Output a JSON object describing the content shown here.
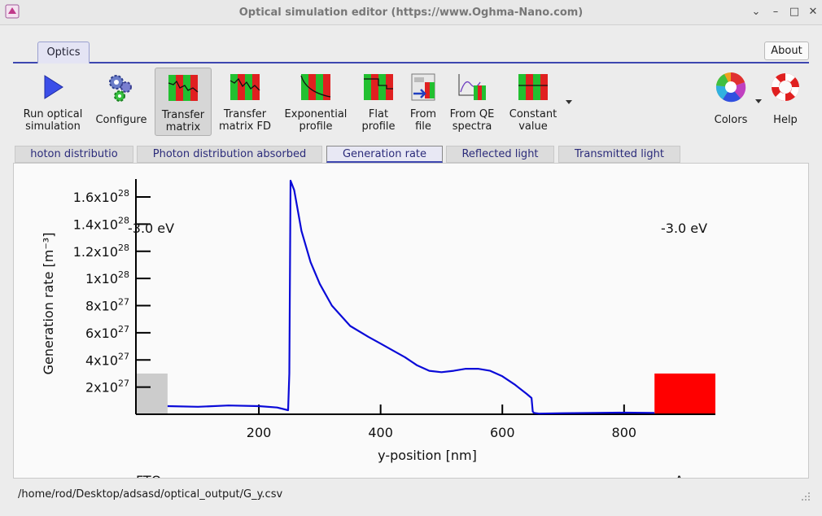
{
  "window": {
    "title": "Optical simulation editor (https://www.Oghma-Nano.com)",
    "controls": [
      "minimize",
      "maximize",
      "close"
    ]
  },
  "ribbon": {
    "tab_label": "Optics",
    "about_label": "About"
  },
  "toolbar": {
    "run": "Run optical\nsimulation",
    "configure": "Configure",
    "transfer_matrix": "Transfer\nmatrix",
    "transfer_matrix_fd": "Transfer\nmatrix FD",
    "exponential_profile": "Exponential\nprofile",
    "flat_profile": "Flat\nprofile",
    "from_file": "From\nfile",
    "from_qe_spectra": "From QE\nspectra",
    "constant_value": "Constant\nvalue",
    "colors": "Colors",
    "help": "Help"
  },
  "subtabs": [
    {
      "label": "hoton distributio"
    },
    {
      "label": "Photon distribution absorbed"
    },
    {
      "label": "Generation rate",
      "active": true
    },
    {
      "label": "Reflected light"
    },
    {
      "label": "Transmitted light"
    }
  ],
  "chart_data": {
    "type": "line",
    "xlabel": "y-position [nm]",
    "ylabel": "Generation rate [m⁻³]",
    "xlim": [
      -2,
      950
    ],
    "ylim": [
      0,
      1.75e+28
    ],
    "x_ticks": [
      200,
      400,
      600,
      800
    ],
    "y_ticks": [
      {
        "mant": "2x10",
        "exp": "27",
        "value": 2e+27
      },
      {
        "mant": "4x10",
        "exp": "27",
        "value": 4e+27
      },
      {
        "mant": "6x10",
        "exp": "27",
        "value": 6e+27
      },
      {
        "mant": "8x10",
        "exp": "27",
        "value": 8e+27
      },
      {
        "mant": "1x10",
        "exp": "28",
        "value": 1e+28
      },
      {
        "mant": "1.2x10",
        "exp": "28",
        "value": 1.2e+28
      },
      {
        "mant": "1.4x10",
        "exp": "28",
        "value": 1.4e+28
      },
      {
        "mant": "1.6x10",
        "exp": "28",
        "value": 1.6e+28
      }
    ],
    "annotations": [
      {
        "text": "-3.0 eV",
        "side": "left"
      },
      {
        "text": "-3.0 eV",
        "side": "right"
      },
      {
        "text": "FTO",
        "side": "left-bottom"
      },
      {
        "text": "A",
        "side": "right-bottom"
      }
    ],
    "layers": [
      {
        "x0": -2,
        "x1": 50,
        "height": 3e+27,
        "color": "#cccccc"
      },
      {
        "x0": 850,
        "x1": 950,
        "height": 3e+27,
        "color": "#ff0000"
      }
    ],
    "series": [
      {
        "color": "#0a0ad8",
        "x": [
          50,
          100,
          150,
          200,
          230,
          248,
          250,
          252,
          258,
          270,
          285,
          300,
          320,
          350,
          380,
          400,
          420,
          440,
          460,
          480,
          500,
          520,
          540,
          560,
          580,
          600,
          620,
          640,
          648,
          650,
          652,
          660,
          700,
          750,
          800,
          850
        ],
        "y": [
          6e+26,
          5.5e+26,
          6.5e+26,
          6e+26,
          5e+26,
          3e+26,
          3e+27,
          1.72e+28,
          1.65e+28,
          1.35e+28,
          1.12e+28,
          9.6e+27,
          8e+27,
          6.5e+27,
          5.7e+27,
          5.2e+27,
          4.7e+27,
          4.2e+27,
          3.6e+27,
          3.2e+27,
          3.1e+27,
          3.2e+27,
          3.35e+27,
          3.35e+27,
          3.2e+27,
          2.8e+27,
          2.2e+27,
          1.5e+27,
          1.2e+27,
          2e+26,
          1e+26,
          5e+25,
          8e+25,
          1e+26,
          1.2e+26,
          1e+26
        ]
      }
    ]
  },
  "status": {
    "path": "/home/rod/Desktop/adsasd/optical_output/G_y.csv"
  },
  "colors": {
    "accent": "#3e47b0",
    "series": "#0a0ad8",
    "layer_left": "#cccccc",
    "layer_right": "#ff0000"
  }
}
